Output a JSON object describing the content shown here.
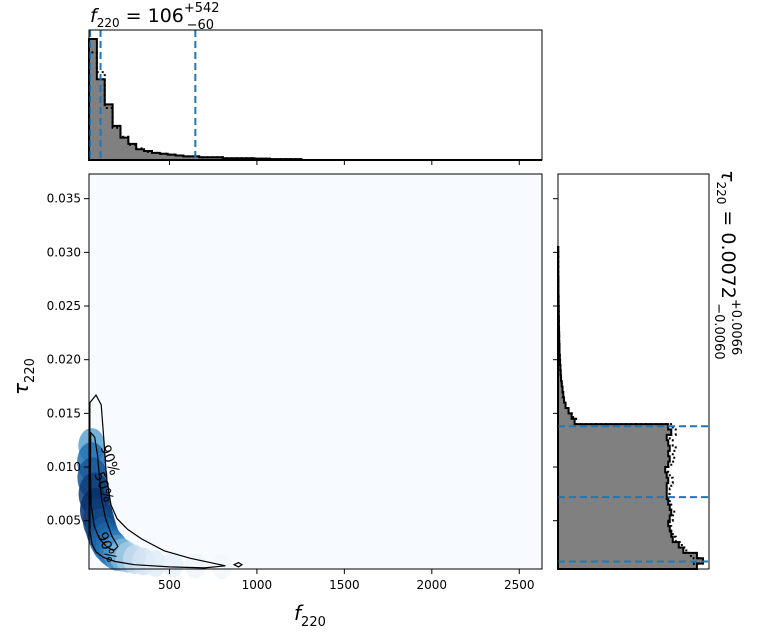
{
  "chart_data": [
    {
      "type": "heatmap",
      "panel": "joint",
      "xlabel": "f",
      "xlabel_sub": "220",
      "ylabel": "τ",
      "ylabel_sub": "220",
      "xlim": [
        40,
        2630
      ],
      "ylim": [
        0.0005,
        0.0373
      ],
      "xticks": [
        500,
        1000,
        1500,
        2000,
        2500
      ],
      "yticks": [
        0.005,
        0.01,
        0.015,
        0.02,
        0.025,
        0.03,
        0.035
      ],
      "xtick_labels": [
        "500",
        "1000",
        "1500",
        "2000",
        "2500"
      ],
      "ytick_labels": [
        "0.005",
        "0.010",
        "0.015",
        "0.020",
        "0.025",
        "0.030",
        "0.035"
      ],
      "colormap": "Blues",
      "density_cells": [
        {
          "x": 55,
          "y": 0.012,
          "w": 0.55
        },
        {
          "x": 55,
          "y": 0.0105,
          "w": 0.75
        },
        {
          "x": 60,
          "y": 0.009,
          "w": 0.85
        },
        {
          "x": 70,
          "y": 0.0075,
          "w": 0.95
        },
        {
          "x": 80,
          "y": 0.006,
          "w": 1.0
        },
        {
          "x": 95,
          "y": 0.005,
          "w": 0.95
        },
        {
          "x": 110,
          "y": 0.0042,
          "w": 0.9
        },
        {
          "x": 125,
          "y": 0.0035,
          "w": 0.85
        },
        {
          "x": 140,
          "y": 0.003,
          "w": 0.8
        },
        {
          "x": 160,
          "y": 0.0026,
          "w": 0.75
        },
        {
          "x": 180,
          "y": 0.0023,
          "w": 0.7
        },
        {
          "x": 200,
          "y": 0.002,
          "w": 0.6
        },
        {
          "x": 230,
          "y": 0.0018,
          "w": 0.45
        },
        {
          "x": 260,
          "y": 0.0016,
          "w": 0.35
        },
        {
          "x": 300,
          "y": 0.0014,
          "w": 0.25
        },
        {
          "x": 350,
          "y": 0.0012,
          "w": 0.18
        },
        {
          "x": 420,
          "y": 0.001,
          "w": 0.12
        },
        {
          "x": 520,
          "y": 0.0009,
          "w": 0.08
        },
        {
          "x": 650,
          "y": 0.0008,
          "w": 0.05
        },
        {
          "x": 800,
          "y": 0.0007,
          "w": 0.03
        }
      ],
      "contours": [
        {
          "level_label": "50%",
          "points": [
            [
              50,
              0.0132
            ],
            [
              72,
              0.0128
            ],
            [
              88,
              0.0112
            ],
            [
              100,
              0.009
            ],
            [
              112,
              0.007
            ],
            [
              135,
              0.0052
            ],
            [
              170,
              0.0036
            ],
            [
              205,
              0.0026
            ],
            [
              180,
              0.0022
            ],
            [
              140,
              0.0026
            ],
            [
              100,
              0.0033
            ],
            [
              70,
              0.0045
            ],
            [
              52,
              0.0065
            ],
            [
              48,
              0.0095
            ],
            [
              50,
              0.0132
            ]
          ]
        },
        {
          "level_label": "90%",
          "points": [
            [
              45,
              0.016
            ],
            [
              80,
              0.0167
            ],
            [
              110,
              0.0158
            ],
            [
              125,
              0.0125
            ],
            [
              140,
              0.009
            ],
            [
              165,
              0.0065
            ],
            [
              200,
              0.0052
            ],
            [
              260,
              0.0042
            ],
            [
              340,
              0.0033
            ],
            [
              470,
              0.0022
            ],
            [
              620,
              0.0015
            ],
            [
              760,
              0.001
            ],
            [
              820,
              0.0008
            ],
            [
              700,
              0.0006
            ],
            [
              500,
              0.0007
            ],
            [
              300,
              0.0009
            ],
            [
              190,
              0.0012
            ],
            [
              120,
              0.0016
            ],
            [
              80,
              0.0021
            ],
            [
              58,
              0.0028
            ],
            [
              46,
              0.004
            ],
            [
              44,
              0.008
            ],
            [
              45,
              0.016
            ]
          ]
        },
        {
          "level_label": "",
          "points": [
            [
              870,
              0.0009
            ],
            [
              895,
              0.0011
            ],
            [
              915,
              0.0009
            ],
            [
              895,
              0.0007
            ],
            [
              870,
              0.0009
            ]
          ]
        }
      ],
      "contour_labels": [
        {
          "text": "90%",
          "x": 135,
          "y": 0.0105
        },
        {
          "text": "50%",
          "x": 100,
          "y": 0.008
        },
        {
          "text": "90%",
          "x": 118,
          "y": 0.0024
        }
      ]
    },
    {
      "type": "bar",
      "panel": "marginal-x",
      "title": "f",
      "title_sub": "220",
      "title_value": " = 106",
      "title_err_plus": "+542",
      "title_err_minus": "−60",
      "xlim": [
        40,
        2630
      ],
      "bin_width": 45,
      "bin_starts": [
        40,
        85,
        130,
        175,
        220,
        265,
        310,
        355,
        400,
        445,
        490,
        535,
        580,
        625,
        670,
        715,
        760,
        805,
        850,
        895,
        940,
        985,
        1030,
        1075,
        1120,
        1165,
        1210
      ],
      "counts": [
        135,
        90,
        62,
        38,
        25,
        18,
        12,
        10,
        8,
        7,
        6,
        5,
        4,
        4,
        3,
        3,
        3,
        2,
        2,
        2,
        2,
        1.5,
        1.5,
        1,
        1,
        1,
        1
      ],
      "prior_counts": [
        120,
        98,
        58,
        36,
        26,
        17,
        13,
        9,
        8,
        7,
        6,
        5,
        4,
        4,
        3,
        3,
        3,
        2,
        2,
        2,
        2,
        1.5,
        1.5,
        1,
        1,
        1,
        1
      ],
      "ymax": 145,
      "quantile_lines": [
        46,
        106,
        648
      ]
    },
    {
      "type": "bar",
      "panel": "marginal-y",
      "title": "τ",
      "title_sub": "220",
      "title_value": " = 0.0072",
      "title_err_plus": "+0.0066",
      "title_err_minus": "−0.0060",
      "orientation": "horizontal",
      "ylim": [
        0.0005,
        0.0373
      ],
      "bin_height": 0.0005,
      "bin_starts": [
        0.0005,
        0.001,
        0.0015,
        0.002,
        0.0025,
        0.003,
        0.0035,
        0.004,
        0.0045,
        0.005,
        0.0055,
        0.006,
        0.0065,
        0.007,
        0.0075,
        0.008,
        0.0085,
        0.009,
        0.0095,
        0.01,
        0.0105,
        0.011,
        0.0115,
        0.012,
        0.0125,
        0.013,
        0.0135,
        0.014,
        0.0145,
        0.015,
        0.0155,
        0.016,
        0.0165,
        0.017,
        0.0175,
        0.018,
        0.0185,
        0.019,
        0.0195,
        0.02,
        0.0205,
        0.021,
        0.0215,
        0.022,
        0.0225,
        0.023,
        0.0235,
        0.024,
        0.0245,
        0.025,
        0.0255,
        0.026,
        0.027,
        0.028,
        0.029,
        0.03
      ],
      "counts": [
        92,
        96,
        92,
        83,
        80,
        76,
        75,
        74,
        73,
        74,
        75,
        74,
        73,
        72,
        72,
        72,
        73,
        72,
        71,
        73,
        74,
        73,
        74,
        73,
        72,
        75,
        73,
        11,
        9,
        7,
        5,
        4,
        3.5,
        3,
        2.5,
        2,
        1.8,
        1.6,
        1.4,
        1.2,
        1,
        1,
        0.8,
        0.8,
        0.7,
        0.6,
        0.6,
        0.5,
        0.5,
        0.4,
        0.4,
        0.3,
        0.3,
        0.2,
        0.2,
        0.2
      ],
      "prior_counts": [
        90,
        93,
        88,
        85,
        82,
        78,
        76,
        75,
        74,
        76,
        77,
        75,
        74,
        73,
        74,
        75,
        76,
        74,
        73,
        75,
        77,
        76,
        78,
        76,
        74,
        78,
        76,
        12,
        10,
        7,
        5,
        4,
        3,
        3,
        2.5,
        2,
        1.8,
        1.5,
        1.3,
        1.2,
        1,
        1,
        0.8,
        0.8,
        0.7,
        0.6,
        0.6,
        0.5,
        0.5,
        0.4,
        0.4,
        0.3,
        0.3,
        0.2,
        0.2,
        0.2
      ],
      "xmax": 100,
      "quantile_lines": [
        0.0012,
        0.0072,
        0.0138
      ]
    }
  ]
}
